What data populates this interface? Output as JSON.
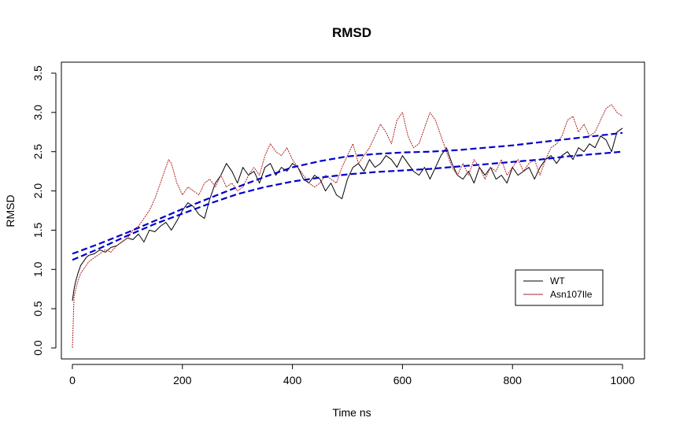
{
  "chart_data": {
    "type": "line",
    "title": "RMSD",
    "xlabel": "Time ns",
    "ylabel": "RMSD",
    "xlim": [
      -20,
      1040
    ],
    "ylim": [
      -0.14,
      3.64
    ],
    "x_ticks": [
      0,
      200,
      400,
      600,
      800,
      1000
    ],
    "x_tick_labels": [
      "0",
      "200",
      "400",
      "600",
      "800",
      "1000"
    ],
    "y_ticks": [
      0.0,
      0.5,
      1.0,
      1.5,
      2.0,
      2.5,
      3.0,
      3.5
    ],
    "y_tick_labels": [
      "0.0",
      "0.5",
      "1.0",
      "1.5",
      "2.0",
      "2.5",
      "3.0",
      "3.5"
    ],
    "grid": false,
    "legend": {
      "position": "bottom-right",
      "entries": [
        {
          "label": "WT",
          "color": "#000000"
        },
        {
          "label": "Asn107Ile",
          "color": "#b22222"
        }
      ]
    },
    "series": [
      {
        "name": "WT",
        "color": "#000000",
        "style": "solid",
        "x": [
          0,
          3,
          6,
          10,
          15,
          20,
          25,
          30,
          40,
          50,
          60,
          70,
          80,
          90,
          100,
          110,
          120,
          130,
          140,
          150,
          160,
          170,
          180,
          190,
          200,
          210,
          220,
          230,
          240,
          250,
          260,
          270,
          280,
          290,
          300,
          310,
          320,
          330,
          340,
          350,
          360,
          370,
          380,
          390,
          400,
          410,
          420,
          430,
          440,
          450,
          460,
          470,
          480,
          490,
          500,
          510,
          520,
          530,
          540,
          550,
          560,
          570,
          580,
          590,
          600,
          610,
          620,
          630,
          640,
          650,
          660,
          670,
          680,
          690,
          700,
          710,
          720,
          730,
          740,
          750,
          760,
          770,
          780,
          790,
          800,
          810,
          820,
          830,
          840,
          850,
          860,
          870,
          880,
          890,
          900,
          910,
          920,
          930,
          940,
          950,
          960,
          970,
          980,
          990,
          1000
        ],
        "y": [
          0.6,
          0.75,
          0.85,
          0.95,
          1.05,
          1.1,
          1.15,
          1.18,
          1.2,
          1.25,
          1.22,
          1.28,
          1.3,
          1.35,
          1.4,
          1.38,
          1.45,
          1.35,
          1.5,
          1.48,
          1.55,
          1.6,
          1.5,
          1.62,
          1.75,
          1.85,
          1.8,
          1.7,
          1.65,
          1.9,
          2.1,
          2.2,
          2.35,
          2.25,
          2.1,
          2.3,
          2.2,
          2.25,
          2.1,
          2.3,
          2.35,
          2.2,
          2.3,
          2.25,
          2.35,
          2.3,
          2.15,
          2.1,
          2.2,
          2.15,
          2.0,
          2.1,
          1.95,
          1.9,
          2.15,
          2.3,
          2.35,
          2.25,
          2.4,
          2.3,
          2.35,
          2.45,
          2.4,
          2.3,
          2.45,
          2.35,
          2.25,
          2.2,
          2.3,
          2.15,
          2.3,
          2.45,
          2.55,
          2.35,
          2.2,
          2.15,
          2.25,
          2.1,
          2.3,
          2.2,
          2.3,
          2.15,
          2.2,
          2.1,
          2.3,
          2.2,
          2.25,
          2.3,
          2.15,
          2.3,
          2.4,
          2.45,
          2.35,
          2.45,
          2.5,
          2.4,
          2.55,
          2.5,
          2.6,
          2.55,
          2.7,
          2.65,
          2.5,
          2.75,
          2.8
        ]
      },
      {
        "name": "Asn107Ile",
        "color": "#b22222",
        "style": "dashed",
        "x": [
          0,
          3,
          6,
          10,
          15,
          20,
          25,
          30,
          40,
          50,
          60,
          70,
          80,
          90,
          100,
          110,
          120,
          130,
          140,
          150,
          160,
          170,
          175,
          180,
          190,
          200,
          210,
          220,
          230,
          240,
          250,
          260,
          270,
          280,
          290,
          300,
          310,
          320,
          330,
          340,
          350,
          360,
          370,
          380,
          390,
          400,
          410,
          420,
          430,
          440,
          450,
          460,
          470,
          480,
          490,
          500,
          510,
          520,
          530,
          540,
          550,
          560,
          570,
          580,
          590,
          600,
          610,
          620,
          630,
          640,
          650,
          660,
          670,
          680,
          690,
          700,
          710,
          720,
          730,
          740,
          750,
          760,
          770,
          780,
          790,
          800,
          810,
          820,
          830,
          840,
          850,
          860,
          870,
          880,
          890,
          900,
          910,
          920,
          930,
          940,
          950,
          960,
          970,
          980,
          990,
          1000
        ],
        "y": [
          0.0,
          0.65,
          0.75,
          0.85,
          0.95,
          1.0,
          1.05,
          1.1,
          1.15,
          1.2,
          1.25,
          1.22,
          1.3,
          1.35,
          1.4,
          1.5,
          1.55,
          1.65,
          1.75,
          1.9,
          2.1,
          2.3,
          2.4,
          2.35,
          2.1,
          1.95,
          2.05,
          2.0,
          1.95,
          2.1,
          2.15,
          2.05,
          2.2,
          2.05,
          2.1,
          2.0,
          2.05,
          2.2,
          2.3,
          2.2,
          2.45,
          2.6,
          2.5,
          2.45,
          2.55,
          2.4,
          2.3,
          2.2,
          2.1,
          2.05,
          2.1,
          2.2,
          2.15,
          2.1,
          2.3,
          2.45,
          2.6,
          2.35,
          2.45,
          2.55,
          2.7,
          2.85,
          2.75,
          2.6,
          2.9,
          3.0,
          2.7,
          2.55,
          2.6,
          2.8,
          3.0,
          2.9,
          2.7,
          2.5,
          2.3,
          2.2,
          2.35,
          2.2,
          2.4,
          2.3,
          2.15,
          2.3,
          2.25,
          2.4,
          2.2,
          2.3,
          2.4,
          2.25,
          2.35,
          2.4,
          2.2,
          2.4,
          2.55,
          2.6,
          2.7,
          2.9,
          2.95,
          2.75,
          2.85,
          2.7,
          2.75,
          2.9,
          3.05,
          3.1,
          3.0,
          2.95
        ]
      },
      {
        "name": "",
        "color": "#0000cc",
        "style": "dashed-thick",
        "x": [
          0,
          50,
          100,
          150,
          200,
          250,
          300,
          350,
          400,
          450,
          500,
          550,
          600,
          650,
          700,
          750,
          800,
          850,
          900,
          950,
          1000
        ],
        "y": [
          1.2,
          1.33,
          1.47,
          1.62,
          1.77,
          1.91,
          2.05,
          2.18,
          2.3,
          2.38,
          2.44,
          2.47,
          2.49,
          2.5,
          2.52,
          2.55,
          2.58,
          2.62,
          2.66,
          2.7,
          2.74
        ]
      },
      {
        "name": "",
        "color": "#0000cc",
        "style": "dashed-thick",
        "x": [
          0,
          50,
          100,
          150,
          200,
          250,
          300,
          350,
          400,
          450,
          500,
          550,
          600,
          650,
          700,
          750,
          800,
          850,
          900,
          950,
          1000
        ],
        "y": [
          1.12,
          1.27,
          1.43,
          1.58,
          1.71,
          1.84,
          1.96,
          2.05,
          2.12,
          2.17,
          2.21,
          2.24,
          2.26,
          2.28,
          2.31,
          2.34,
          2.37,
          2.4,
          2.44,
          2.47,
          2.5
        ]
      }
    ]
  }
}
